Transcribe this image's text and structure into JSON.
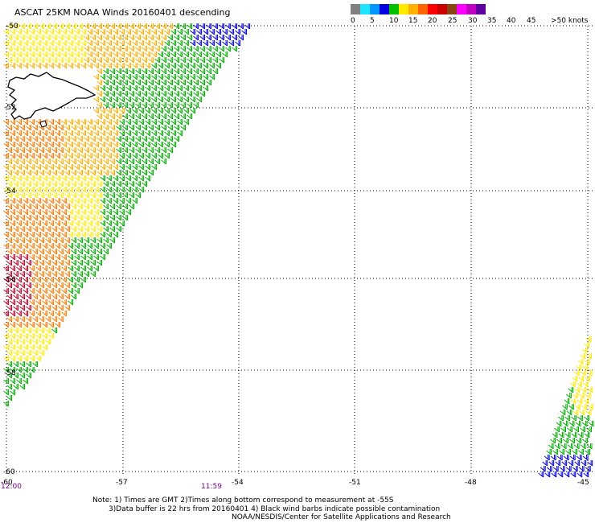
{
  "title": "ASCAT 25KM NOAA Winds 20160401 descending",
  "colors": {
    "scale": [
      "#808080",
      "#1ee6ff",
      "#0096ff",
      "#0000e0",
      "#00c000",
      "#ffea00",
      "#ffb000",
      "#ff6400",
      "#ff0000",
      "#cc0000",
      "#8b4513",
      "#ff00ff",
      "#c000c0",
      "#6000a0"
    ],
    "barb_ranges": {
      "blue": "#0000e0",
      "green": "#00b000",
      "yellow": "#ffea00",
      "gold": "#ffb000",
      "orange": "#ff7a00",
      "red": "#c0002a"
    }
  },
  "scale_labels": [
    "0",
    "5",
    "10",
    "15",
    "20",
    "25",
    "30",
    "35",
    "40",
    "45",
    ">50 knots"
  ],
  "lat_labels": [
    "-50",
    "-52",
    "-54",
    "-56",
    "-58",
    "-60"
  ],
  "lon_labels": [
    "-60",
    "-57",
    "-54",
    "-51",
    "-48",
    "-45"
  ],
  "time_start": "12:00",
  "time_mid": "11:59",
  "notes": "Note: 1) Times are GMT 2)Times along bottom correspond to measurement at -55S\n       3)Data buffer is 22 hrs from 20160401 4) Black wind barbs indicate possible contamination",
  "credit": "NOAA/NESDIS/Center for Satellite Applications and Research"
}
